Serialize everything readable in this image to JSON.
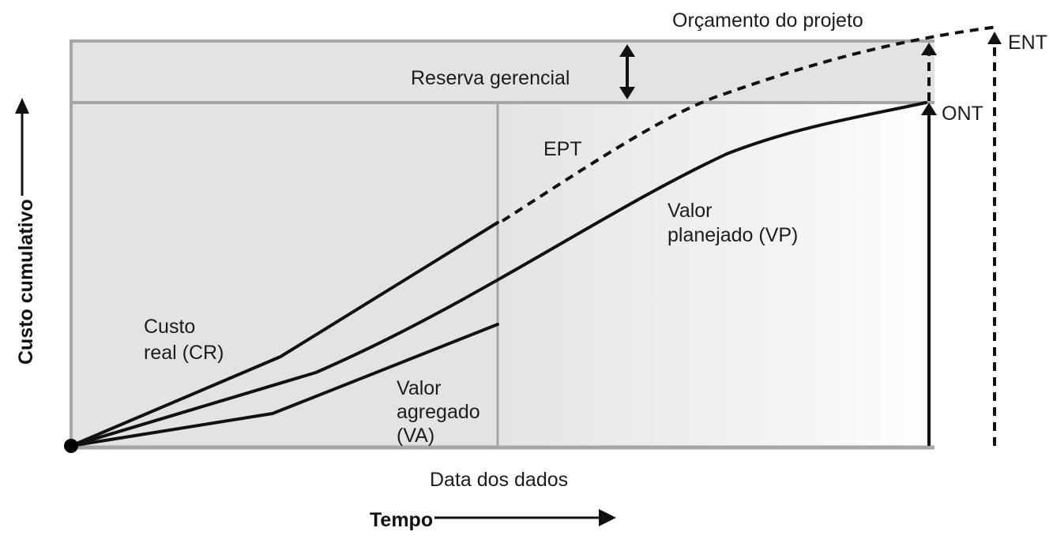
{
  "labels": {
    "budget": "Orçamento do projeto",
    "reserve": "Reserva gerencial",
    "ept": "EPT",
    "planned_line1": "Valor",
    "planned_line2": "planejado (VP)",
    "actual_line1": "Custo",
    "actual_line2": "real (CR)",
    "earned_line1": "Valor",
    "earned_line2": "agregado",
    "earned_line3": "(VA)",
    "ent": "ENT",
    "ont": "ONT",
    "data_date": "Data dos dados",
    "x_axis": "Tempo",
    "y_axis": "Custo cumulativo"
  }
}
